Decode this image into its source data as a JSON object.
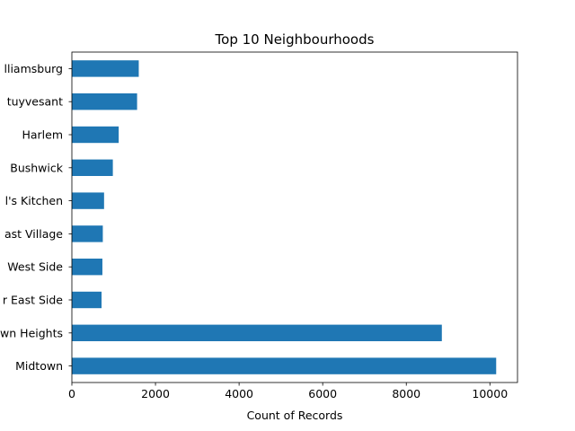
{
  "chart_data": {
    "type": "bar",
    "orientation": "horizontal",
    "title": "Top 10 Neighbourhoods",
    "xlabel": "Count of Records",
    "ylabel": "",
    "categories": [
      "Midtown",
      "Crown Heights",
      "Upper East Side",
      "Upper West Side",
      "East Village",
      "Hell's Kitchen",
      "Bushwick",
      "Harlem",
      "Bedford-Stuyvesant",
      "Williamsburg"
    ],
    "visible_tick_labels": [
      "Midtown",
      "wn Heights",
      "r East Side",
      "West Side",
      "ast Village",
      "l's Kitchen",
      "Bushwick",
      "Harlem",
      "tuyvesant",
      "lliamsburg"
    ],
    "values": [
      10150,
      8850,
      710,
      730,
      740,
      770,
      980,
      1120,
      1560,
      1600
    ],
    "xlim": [
      0,
      10660
    ],
    "xticks": [
      0,
      2000,
      4000,
      6000,
      8000,
      10000
    ],
    "grid": false,
    "legend": "none",
    "bar_color": "#1f77b4"
  }
}
